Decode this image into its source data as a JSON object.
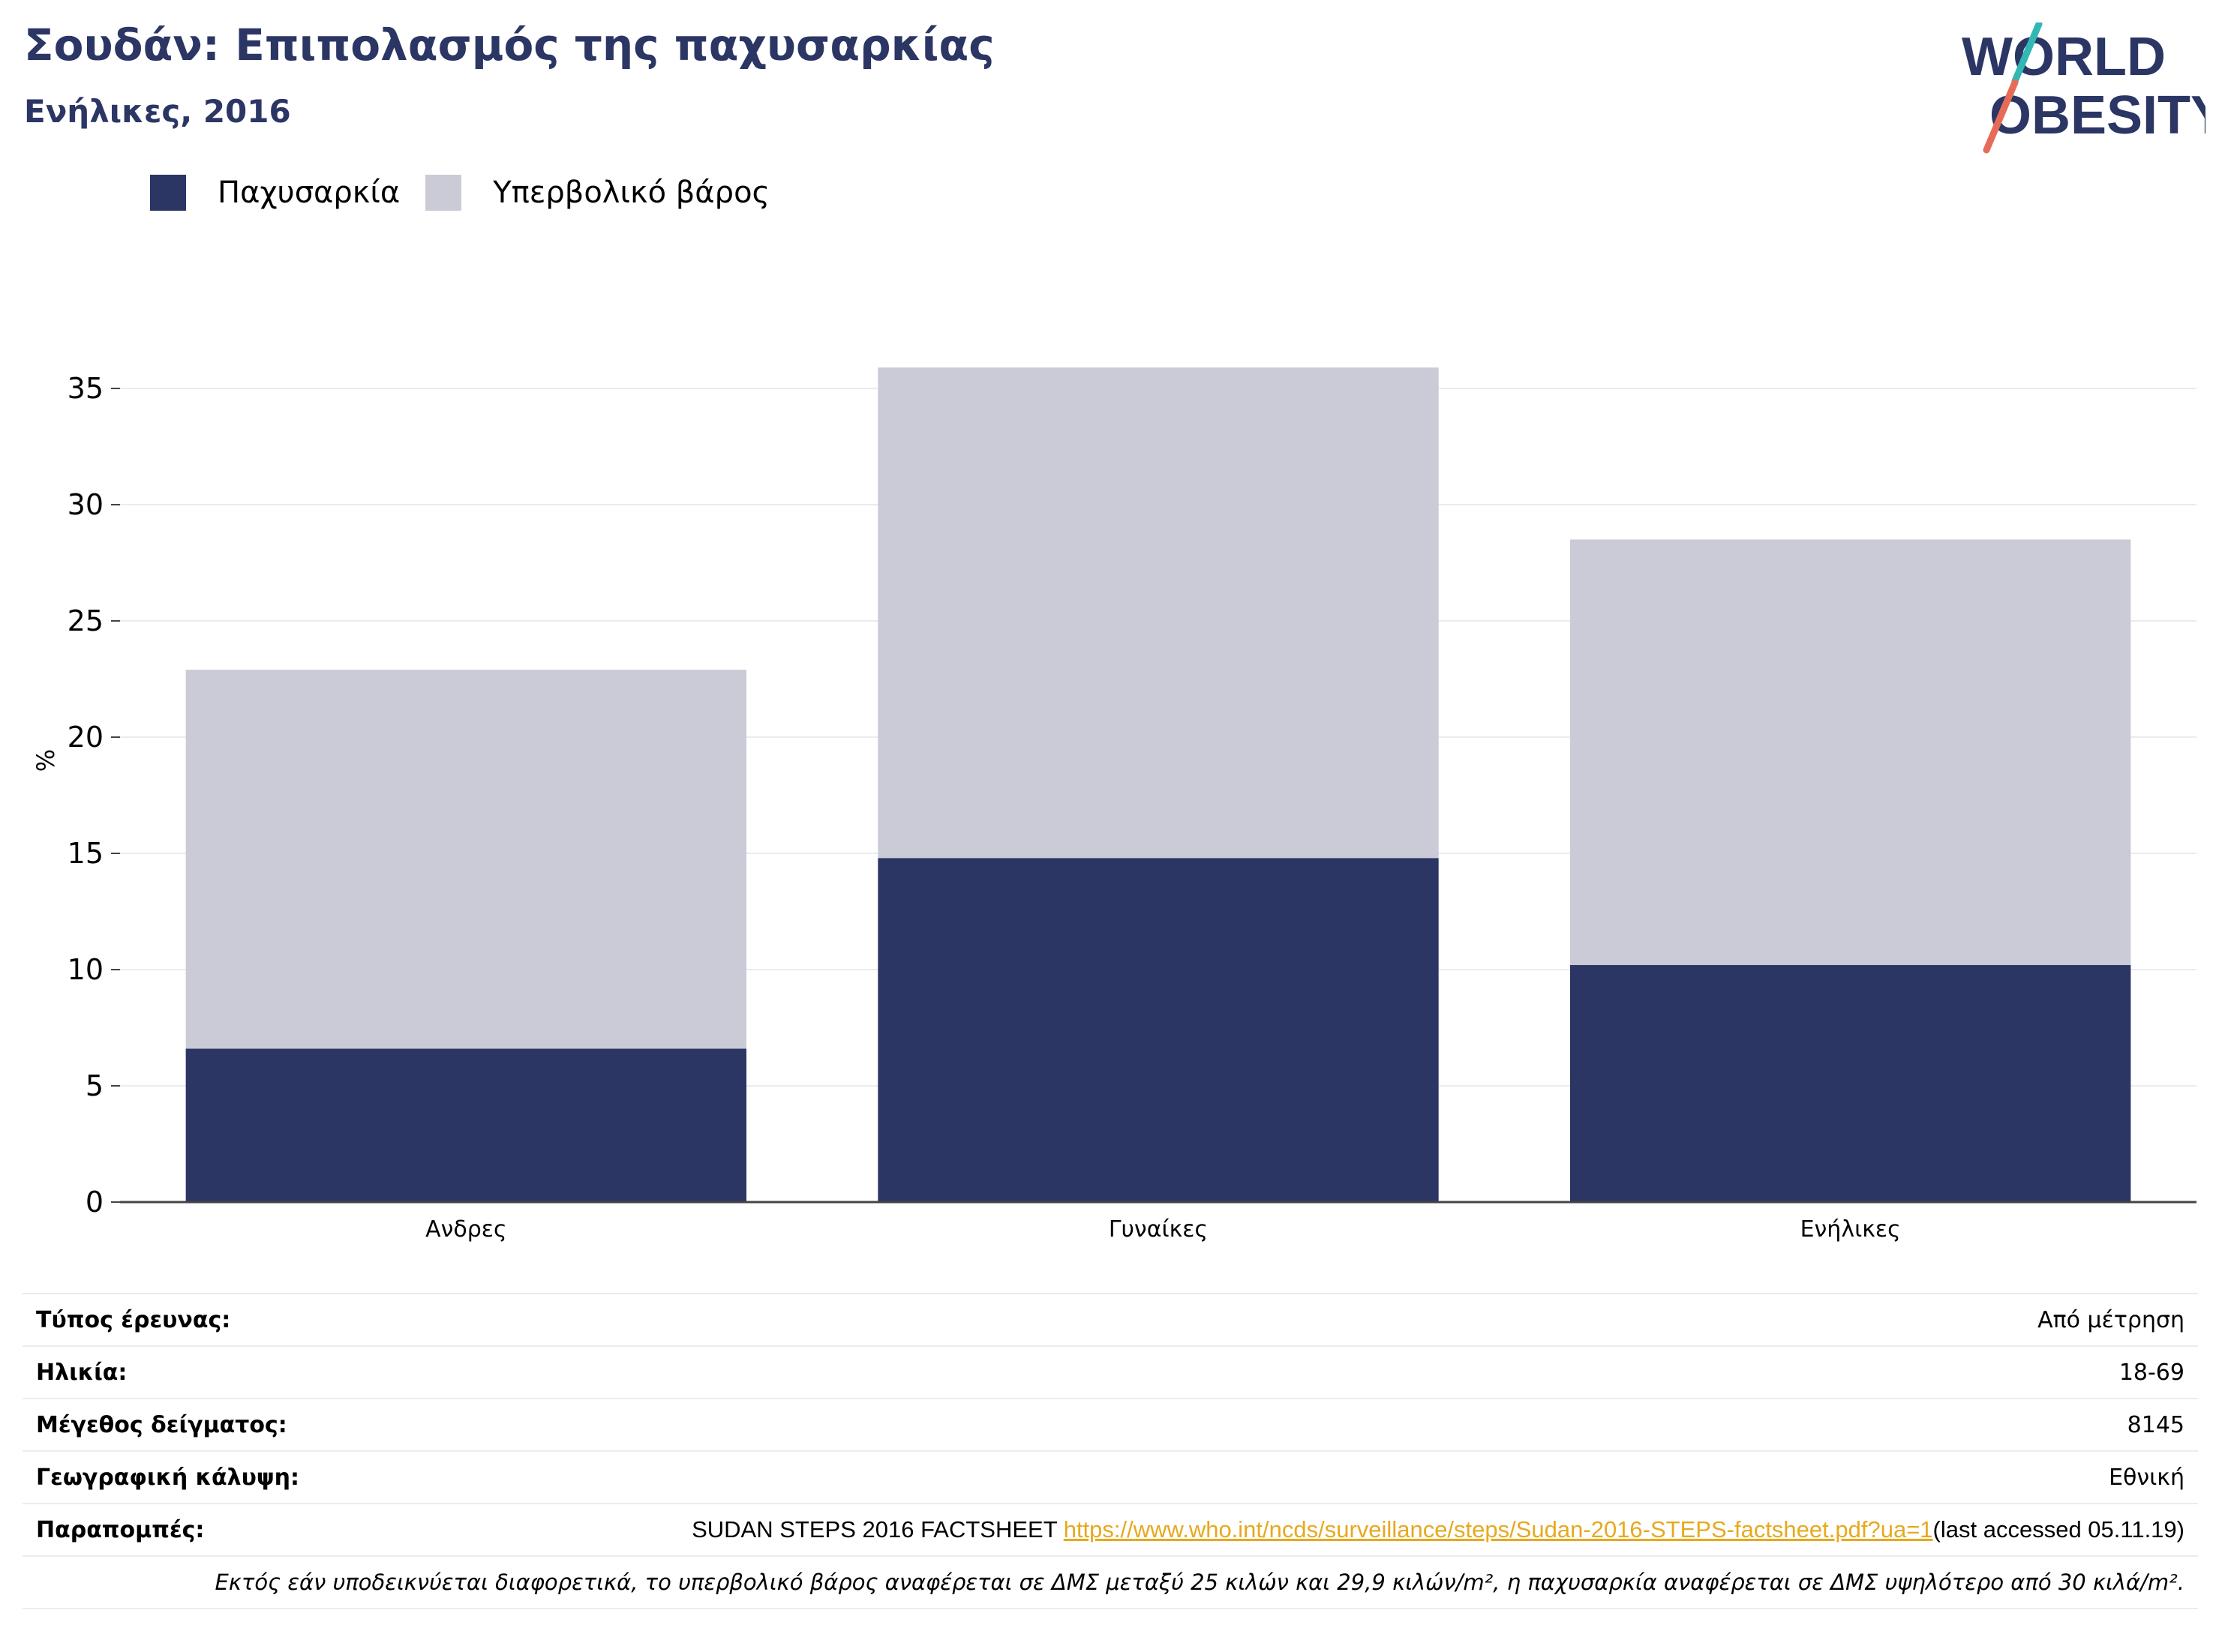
{
  "header": {
    "title": "Σουδάν: Επιπολασμός της παχυσαρκίας",
    "subtitle": "Ενήλικες, 2016"
  },
  "logo": {
    "line1": "WORLD",
    "line2": "OBESITY",
    "colors": {
      "navy": "#2b3664",
      "teal": "#31b7b4",
      "coral": "#e66c57"
    }
  },
  "legend": {
    "items": [
      {
        "label": "Παχυσαρκία",
        "color": "#2b3664"
      },
      {
        "label": "Υπερβολικό βάρος",
        "color": "#cacbd6"
      }
    ]
  },
  "chart_data": {
    "type": "bar",
    "stacked": true,
    "categories": [
      "Ανδρες",
      "Γυναίκες",
      "Ενήλικες"
    ],
    "series": [
      {
        "name": "Παχυσαρκία",
        "color": "#2b3664",
        "values": [
          6.6,
          14.8,
          10.2
        ]
      },
      {
        "name": "Υπερβολικό βάρος",
        "color": "#cacbd6",
        "values": [
          16.3,
          21.1,
          18.3
        ]
      }
    ],
    "ylabel": "%",
    "ylim": [
      0,
      37
    ],
    "yticks": [
      0,
      5,
      10,
      15,
      20,
      25,
      30,
      35
    ],
    "grid": true,
    "legend_position": "top-left"
  },
  "info": {
    "rows": [
      {
        "key": "Τύπος έρευνας:",
        "value": "Από μέτρηση"
      },
      {
        "key": "Ηλικία:",
        "value": "18-69"
      },
      {
        "key": "Μέγεθος δείγματος:",
        "value": "8145"
      },
      {
        "key": "Γεωγραφική κάλυψη:",
        "value": "Εθνική"
      }
    ],
    "references": {
      "key": "Παραπομπές:",
      "text": "SUDAN STEPS 2016 FACTSHEET ",
      "link": "https://www.who.int/ncds/surveillance/steps/Sudan-2016-STEPS-factsheet.pdf?ua=1",
      "suffix": "(last accessed 05.11.19)"
    },
    "note": "Εκτός εάν υποδεικνύεται διαφορετικά, το υπερβολικό βάρος αναφέρεται σε ΔΜΣ μεταξύ 25 κιλών και 29,9 κιλών/m², η παχυσαρκία αναφέρεται σε ΔΜΣ υψηλότερο από 30 κιλά/m²."
  }
}
